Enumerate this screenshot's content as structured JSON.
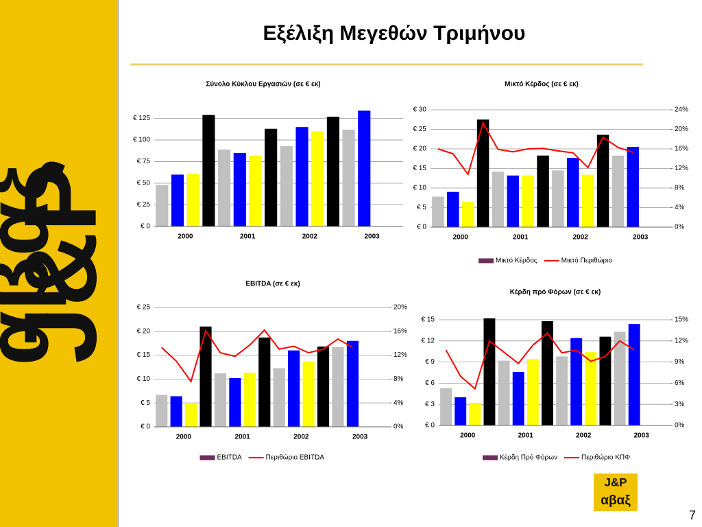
{
  "title": "Εξέλιξη Μεγεθών Τριμήνου",
  "page_number": "7",
  "logo": {
    "line1": "J&P",
    "line2": "αβαξ"
  },
  "chart_data": [
    {
      "type": "bar",
      "title": "Σύνολο Κύκλου Εργασιών (σε € εκ)",
      "categories": [
        null,
        "2000",
        null,
        null,
        null,
        "2001",
        null,
        null,
        null,
        "2002",
        null,
        null,
        null,
        "2003"
      ],
      "bar_colors": [
        "#c0c0c0",
        "#0000ff",
        "#ffff00",
        "#000000",
        "#c0c0c0",
        "#0000ff",
        "#ffff00",
        "#000000",
        "#c0c0c0",
        "#0000ff",
        "#ffff00",
        "#000000",
        "#c0c0c0",
        "#0000ff"
      ],
      "series": [
        {
          "values": [
            48,
            60,
            61,
            129,
            89,
            85,
            82,
            113,
            93,
            115,
            110,
            127,
            112,
            134
          ]
        }
      ],
      "ylim": [
        0,
        135
      ],
      "yticks": [
        {
          "value": 0,
          "label": "€ 0"
        },
        {
          "value": 25,
          "label": "€ 25"
        },
        {
          "value": 50,
          "label": "€ 50"
        },
        {
          "value": 75,
          "label": "€ 75"
        },
        {
          "value": 100,
          "label": "€ 100"
        },
        {
          "value": 125,
          "label": "€ 125"
        }
      ],
      "grid": true
    },
    {
      "type": "combo",
      "title": "Μικτό Κέρδος (σε € εκ)",
      "categories": [
        null,
        "2000",
        null,
        null,
        null,
        "2001",
        null,
        null,
        null,
        "2002",
        null,
        null,
        null,
        "2003"
      ],
      "bar_colors": [
        "#c0c0c0",
        "#0000ff",
        "#ffff00",
        "#000000",
        "#c0c0c0",
        "#0000ff",
        "#ffff00",
        "#000000",
        "#c0c0c0",
        "#0000ff",
        "#ffff00",
        "#000000",
        "#c0c0c0",
        "#0000ff"
      ],
      "series": [
        {
          "name": "Μικτό Κέρδος",
          "color": "#6b2d5b",
          "values": [
            7.8,
            9,
            6.5,
            27.5,
            14.2,
            13.2,
            13.2,
            18.3,
            14.5,
            17.7,
            13.4,
            23.6,
            18.3,
            20.5
          ]
        },
        {
          "name": "Μικτό Περιθώριο",
          "color": "#ff0000",
          "axis": "y2",
          "values": [
            16,
            15,
            10.8,
            21.3,
            15.9,
            15.4,
            16,
            16.1,
            15.6,
            15.2,
            12.2,
            18.4,
            16.3,
            15.3
          ]
        }
      ],
      "ylim": [
        0,
        30
      ],
      "yticks": [
        {
          "value": 0,
          "label": "€ 0"
        },
        {
          "value": 5,
          "label": "€ 5"
        },
        {
          "value": 10,
          "label": "€ 10"
        },
        {
          "value": 15,
          "label": "€ 15"
        },
        {
          "value": 20,
          "label": "€ 20"
        },
        {
          "value": 25,
          "label": "€ 25"
        },
        {
          "value": 30,
          "label": "€ 30"
        }
      ],
      "y2lim": [
        0,
        24
      ],
      "y2ticks": [
        {
          "value": 0,
          "label": "0%"
        },
        {
          "value": 4,
          "label": "4%"
        },
        {
          "value": 8,
          "label": "8%"
        },
        {
          "value": 12,
          "label": "12%"
        },
        {
          "value": 16,
          "label": "16%"
        },
        {
          "value": 20,
          "label": "20%"
        },
        {
          "value": 24,
          "label": "24%"
        }
      ],
      "grid": true,
      "legend": "bottom"
    },
    {
      "type": "combo",
      "title": "EBITDA (σε € εκ)",
      "categories": [
        null,
        "2000",
        null,
        null,
        null,
        "2001",
        null,
        null,
        null,
        "2002",
        null,
        null,
        null,
        "2003"
      ],
      "bar_colors": [
        "#c0c0c0",
        "#0000ff",
        "#ffff00",
        "#000000",
        "#c0c0c0",
        "#0000ff",
        "#ffff00",
        "#000000",
        "#c0c0c0",
        "#0000ff",
        "#ffff00",
        "#000000",
        "#c0c0c0",
        "#0000ff"
      ],
      "series": [
        {
          "name": "EBITDA",
          "color": "#6b2d5b",
          "values": [
            6.7,
            6.4,
            4.8,
            21,
            11.2,
            10.2,
            11.3,
            18.7,
            12.3,
            16,
            13.7,
            16.8,
            16.7,
            18
          ]
        },
        {
          "name": "Περιθώριο EBITDA",
          "color": "#ff0000",
          "axis": "y2",
          "values": [
            13.3,
            11,
            7.6,
            16.1,
            12.4,
            11.8,
            13.7,
            16.2,
            13,
            13.5,
            12.4,
            13,
            14.7,
            13.3
          ]
        }
      ],
      "ylim": [
        0,
        25
      ],
      "yticks": [
        {
          "value": 0,
          "label": "€ 0"
        },
        {
          "value": 5,
          "label": "€ 5"
        },
        {
          "value": 10,
          "label": "€ 10"
        },
        {
          "value": 15,
          "label": "€ 15"
        },
        {
          "value": 20,
          "label": "€ 20"
        },
        {
          "value": 25,
          "label": "€ 25"
        }
      ],
      "y2lim": [
        0,
        20
      ],
      "y2ticks": [
        {
          "value": 0,
          "label": "0%"
        },
        {
          "value": 4,
          "label": "4%"
        },
        {
          "value": 8,
          "label": "8%"
        },
        {
          "value": 12,
          "label": "12%"
        },
        {
          "value": 16,
          "label": "16%"
        },
        {
          "value": 20,
          "label": "20%"
        }
      ],
      "grid": true,
      "legend": "bottom"
    },
    {
      "type": "combo",
      "title": "Κέρδη πρό Φόρων (σε € εκ)",
      "categories": [
        null,
        "2000",
        null,
        null,
        null,
        "2001",
        null,
        null,
        null,
        "2002",
        null,
        null,
        null,
        "2003"
      ],
      "bar_colors": [
        "#c0c0c0",
        "#0000ff",
        "#ffff00",
        "#000000",
        "#c0c0c0",
        "#0000ff",
        "#ffff00",
        "#000000",
        "#c0c0c0",
        "#0000ff",
        "#ffff00",
        "#000000",
        "#c0c0c0",
        "#0000ff"
      ],
      "series": [
        {
          "name": "Κέρδη Πρό Φόρων",
          "color": "#6b2d5b",
          "values": [
            5.3,
            4,
            3.2,
            15.2,
            9.2,
            7.6,
            9.4,
            14.8,
            9.8,
            12.4,
            10.4,
            12.6,
            13.3,
            14.4
          ]
        },
        {
          "name": "Περιθώριο ΚΠΦ",
          "color": "#ff0000",
          "axis": "y2",
          "values": [
            10.7,
            7,
            5.2,
            12,
            10.4,
            8.8,
            11.4,
            13.1,
            10.3,
            10.7,
            9.1,
            9.8,
            12,
            10.7
          ]
        }
      ],
      "ylim": [
        0,
        15
      ],
      "yticks": [
        {
          "value": 0,
          "label": "€ 0"
        },
        {
          "value": 3,
          "label": "€ 3"
        },
        {
          "value": 6,
          "label": "€ 6"
        },
        {
          "value": 9,
          "label": "€ 9"
        },
        {
          "value": 12,
          "label": "€ 12"
        },
        {
          "value": 15,
          "label": "€ 15"
        }
      ],
      "y2lim": [
        0,
        15
      ],
      "y2ticks": [
        {
          "value": 0,
          "label": "0%"
        },
        {
          "value": 3,
          "label": "3%"
        },
        {
          "value": 6,
          "label": "6%"
        },
        {
          "value": 9,
          "label": "9%"
        },
        {
          "value": 12,
          "label": "12%"
        },
        {
          "value": 15,
          "label": "15%"
        }
      ],
      "grid": true,
      "legend": "bottom"
    }
  ]
}
